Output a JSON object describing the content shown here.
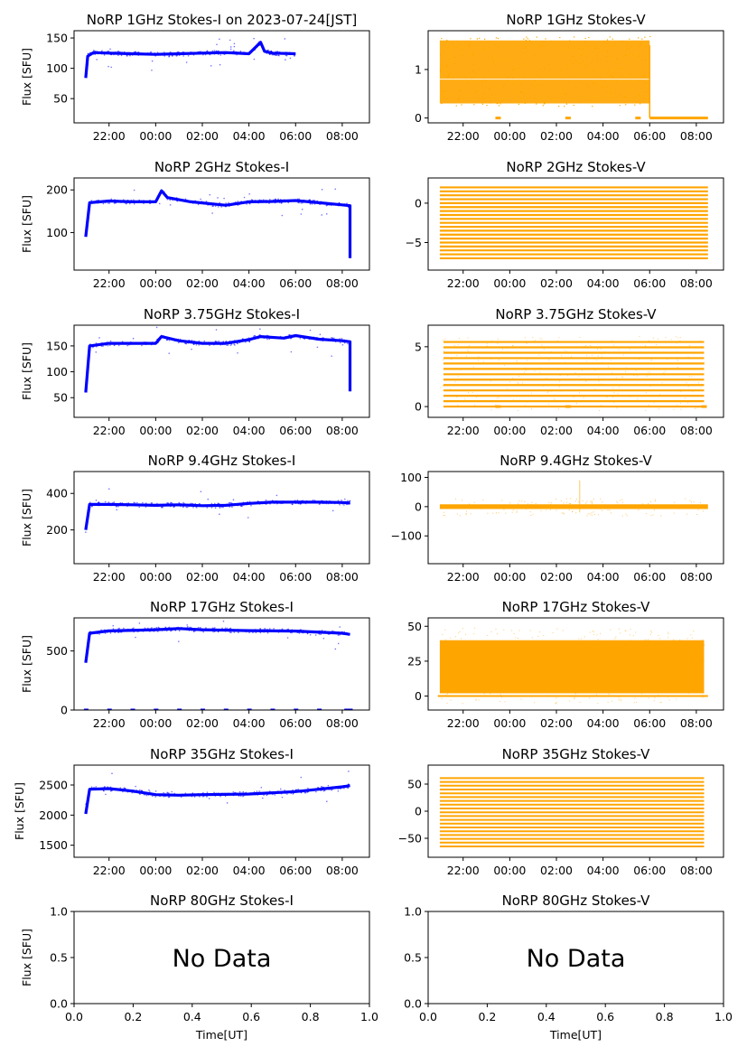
{
  "figure": {
    "xlabel": "Time[UT]",
    "ylabel": "Flux [SFU]",
    "no_data_text": "No Data",
    "time_ticks": [
      "22:00",
      "00:00",
      "02:00",
      "04:00",
      "06:00",
      "08:00"
    ],
    "unit_ticks": [
      "0.0",
      "0.2",
      "0.4",
      "0.6",
      "0.8",
      "1.0"
    ],
    "colors": {
      "stokes_i": "#0000ff",
      "stokes_v": "#ffa500",
      "axes": "#000000",
      "background": "#ffffff"
    }
  },
  "chart_data": [
    {
      "type": "scatter",
      "title": "NoRP 1GHz Stokes-I on 2023-07-24[JST]",
      "ylabel": "Flux [SFU]",
      "xlabel": "",
      "x_range": [
        "20:30",
        "09:10"
      ],
      "ylim": [
        10,
        162
      ],
      "yticks": [
        50,
        100,
        150
      ],
      "series": [
        {
          "color": "#0000ff",
          "start": "21:00",
          "end": "06:00",
          "points": [
            [
              "21:00",
              84
            ],
            [
              "21:05",
              120
            ],
            [
              "21:20",
              126
            ],
            [
              "22:00",
              125
            ],
            [
              "23:00",
              124
            ],
            [
              "00:00",
              123
            ],
            [
              "01:00",
              124
            ],
            [
              "02:00",
              125
            ],
            [
              "03:00",
              126
            ],
            [
              "04:00",
              124
            ],
            [
              "04:30",
              143
            ],
            [
              "04:40",
              128
            ],
            [
              "05:00",
              125
            ],
            [
              "06:00",
              124
            ]
          ]
        }
      ]
    },
    {
      "type": "scatter",
      "title": "NoRP 1GHz Stokes-V",
      "ylabel": "",
      "xlabel": "",
      "x_range": [
        "20:30",
        "09:10"
      ],
      "ylim": [
        -0.1,
        1.8
      ],
      "yticks": [
        0,
        1
      ],
      "series": [
        {
          "color": "#ffa500",
          "start": "21:00",
          "end": "08:30",
          "points": [
            [
              "21:00",
              0.3
            ],
            [
              "21:00",
              1.6
            ],
            [
              "06:00",
              1.5
            ],
            [
              "06:00",
              0.0
            ],
            [
              "08:30",
              0.0
            ]
          ]
        }
      ]
    },
    {
      "type": "scatter",
      "title": "NoRP 2GHz Stokes-I",
      "ylabel": "Flux [SFU]",
      "xlabel": "",
      "x_range": [
        "20:30",
        "09:10"
      ],
      "ylim": [
        12,
        228
      ],
      "yticks": [
        100,
        200
      ],
      "series": [
        {
          "color": "#0000ff",
          "start": "21:00",
          "end": "08:20",
          "points": [
            [
              "21:00",
              90
            ],
            [
              "21:10",
              170
            ],
            [
              "22:00",
              174
            ],
            [
              "23:00",
              172
            ],
            [
              "00:00",
              172
            ],
            [
              "00:15",
              198
            ],
            [
              "00:30",
              182
            ],
            [
              "01:30",
              172
            ],
            [
              "03:00",
              164
            ],
            [
              "04:00",
              172
            ],
            [
              "05:00",
              173
            ],
            [
              "06:00",
              175
            ],
            [
              "07:00",
              170
            ],
            [
              "08:00",
              165
            ],
            [
              "08:20",
              163
            ],
            [
              "08:20",
              40
            ]
          ]
        }
      ]
    },
    {
      "type": "scatter",
      "title": "NoRP 2GHz Stokes-V",
      "ylabel": "",
      "xlabel": "",
      "x_range": [
        "20:30",
        "09:10"
      ],
      "ylim": [
        -8.5,
        3.2
      ],
      "yticks": [
        -5,
        0
      ],
      "series": [
        {
          "color": "#ffa500",
          "start": "21:00",
          "end": "08:30",
          "points": [
            [
              "21:00",
              2
            ],
            [
              "21:00",
              -7.5
            ],
            [
              "08:30",
              2
            ],
            [
              "08:30",
              -7.5
            ]
          ]
        }
      ]
    },
    {
      "type": "scatter",
      "title": "NoRP 3.75GHz Stokes-I",
      "ylabel": "Flux [SFU]",
      "xlabel": "",
      "x_range": [
        "20:30",
        "09:10"
      ],
      "ylim": [
        12,
        190
      ],
      "yticks": [
        50,
        100,
        150
      ],
      "series": [
        {
          "color": "#0000ff",
          "start": "21:00",
          "end": "08:20",
          "points": [
            [
              "21:00",
              60
            ],
            [
              "21:10",
              150
            ],
            [
              "22:00",
              155
            ],
            [
              "00:00",
              155
            ],
            [
              "00:15",
              168
            ],
            [
              "01:00",
              160
            ],
            [
              "02:00",
              155
            ],
            [
              "03:00",
              155
            ],
            [
              "04:00",
              162
            ],
            [
              "04:30",
              168
            ],
            [
              "05:30",
              165
            ],
            [
              "06:00",
              170
            ],
            [
              "07:00",
              163
            ],
            [
              "08:00",
              160
            ],
            [
              "08:20",
              158
            ],
            [
              "08:20",
              62
            ]
          ]
        }
      ]
    },
    {
      "type": "scatter",
      "title": "NoRP 3.75GHz Stokes-V",
      "ylabel": "",
      "xlabel": "",
      "x_range": [
        "20:30",
        "09:10"
      ],
      "ylim": [
        -0.9,
        6.8
      ],
      "yticks": [
        0,
        5
      ],
      "series": [
        {
          "color": "#ffa500",
          "start": "21:00",
          "end": "08:20",
          "points": [
            [
              "21:00",
              -0.5
            ],
            [
              "21:10",
              5.5
            ],
            [
              "08:20",
              5.5
            ],
            [
              "08:20",
              1.0
            ]
          ]
        }
      ]
    },
    {
      "type": "scatter",
      "title": "NoRP 9.4GHz Stokes-I",
      "ylabel": "Flux [SFU]",
      "xlabel": "",
      "x_range": [
        "20:30",
        "09:10"
      ],
      "ylim": [
        15,
        520
      ],
      "yticks": [
        200,
        400
      ],
      "series": [
        {
          "color": "#0000ff",
          "start": "21:00",
          "end": "08:20",
          "points": [
            [
              "21:00",
              200
            ],
            [
              "21:10",
              340
            ],
            [
              "22:00",
              340
            ],
            [
              "23:00",
              338
            ],
            [
              "00:00",
              335
            ],
            [
              "01:00",
              338
            ],
            [
              "02:00",
              333
            ],
            [
              "03:00",
              335
            ],
            [
              "04:00",
              345
            ],
            [
              "05:00",
              352
            ],
            [
              "06:00",
              352
            ],
            [
              "07:00",
              352
            ],
            [
              "08:00",
              350
            ],
            [
              "08:20",
              348
            ]
          ]
        }
      ]
    },
    {
      "type": "scatter",
      "title": "NoRP 9.4GHz Stokes-V",
      "ylabel": "",
      "xlabel": "",
      "x_range": [
        "20:30",
        "09:10"
      ],
      "ylim": [
        -195,
        120
      ],
      "yticks": [
        -100,
        0,
        100
      ],
      "series": [
        {
          "color": "#ffa500",
          "start": "21:00",
          "end": "08:30",
          "points": [
            [
              "21:00",
              0
            ],
            [
              "03:00",
              90
            ],
            [
              "08:30",
              0
            ]
          ]
        }
      ]
    },
    {
      "type": "scatter",
      "title": "NoRP 17GHz Stokes-I",
      "ylabel": "Flux [SFU]",
      "xlabel": "",
      "x_range": [
        "20:30",
        "09:10"
      ],
      "ylim": [
        0,
        780
      ],
      "yticks": [
        0,
        500
      ],
      "series": [
        {
          "color": "#0000ff",
          "start": "21:00",
          "end": "08:20",
          "points": [
            [
              "21:00",
              400
            ],
            [
              "21:10",
              650
            ],
            [
              "22:00",
              670
            ],
            [
              "00:00",
              680
            ],
            [
              "01:00",
              690
            ],
            [
              "02:00",
              680
            ],
            [
              "04:00",
              672
            ],
            [
              "06:00",
              668
            ],
            [
              "08:00",
              650
            ],
            [
              "08:20",
              640
            ]
          ]
        }
      ]
    },
    {
      "type": "scatter",
      "title": "NoRP 17GHz Stokes-V",
      "ylabel": "",
      "xlabel": "",
      "x_range": [
        "20:30",
        "09:10"
      ],
      "ylim": [
        -10,
        56
      ],
      "yticks": [
        0,
        25,
        50
      ],
      "series": [
        {
          "color": "#ffa500",
          "start": "21:00",
          "end": "08:20",
          "points": [
            [
              "21:00",
              0
            ],
            [
              "21:00",
              40
            ],
            [
              "08:20",
              35
            ],
            [
              "08:20",
              5
            ]
          ]
        }
      ]
    },
    {
      "type": "scatter",
      "title": "NoRP 35GHz Stokes-I",
      "ylabel": "Flux [SFU]",
      "xlabel": "",
      "x_range": [
        "20:30",
        "09:10"
      ],
      "ylim": [
        1300,
        2830
      ],
      "yticks": [
        1500,
        2000,
        2500
      ],
      "series": [
        {
          "color": "#0000ff",
          "start": "21:00",
          "end": "08:20",
          "points": [
            [
              "21:00",
              2020
            ],
            [
              "21:10",
              2430
            ],
            [
              "22:00",
              2440
            ],
            [
              "23:00",
              2400
            ],
            [
              "00:00",
              2340
            ],
            [
              "01:00",
              2330
            ],
            [
              "02:00",
              2340
            ],
            [
              "04:00",
              2350
            ],
            [
              "06:00",
              2390
            ],
            [
              "07:00",
              2430
            ],
            [
              "08:00",
              2470
            ],
            [
              "08:20",
              2490
            ]
          ]
        }
      ]
    },
    {
      "type": "scatter",
      "title": "NoRP 35GHz Stokes-V",
      "ylabel": "",
      "xlabel": "",
      "x_range": [
        "20:30",
        "09:10"
      ],
      "ylim": [
        -85,
        85
      ],
      "yticks": [
        -50,
        0,
        50
      ],
      "series": [
        {
          "color": "#ffa500",
          "start": "21:00",
          "end": "08:20",
          "points": [
            [
              "21:00",
              -70
            ],
            [
              "21:00",
              65
            ],
            [
              "08:20",
              65
            ],
            [
              "08:20",
              -70
            ]
          ]
        }
      ]
    },
    {
      "type": "scatter",
      "title": "NoRP 80GHz Stokes-I",
      "ylabel": "Flux [SFU]",
      "xlabel": "Time[UT]",
      "xlim": [
        0,
        1
      ],
      "ylim": [
        0,
        1
      ],
      "yticks": [
        0,
        0.5,
        1
      ],
      "series": []
    },
    {
      "type": "scatter",
      "title": "NoRP 80GHz Stokes-V",
      "ylabel": "",
      "xlabel": "Time[UT]",
      "xlim": [
        0,
        1
      ],
      "ylim": [
        0,
        1
      ],
      "yticks": [
        0,
        0.5,
        1
      ],
      "series": []
    }
  ]
}
